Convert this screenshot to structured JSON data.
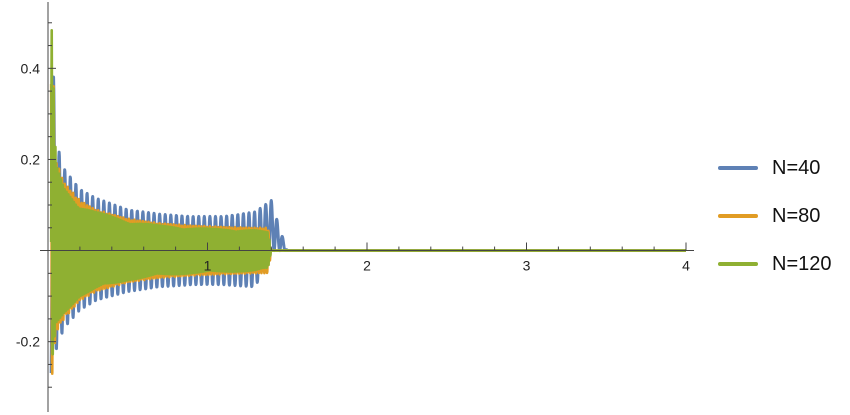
{
  "chart_data": {
    "type": "line",
    "title": "",
    "xlabel": "",
    "ylabel": "",
    "xlim": [
      0,
      4
    ],
    "ylim": [
      -0.35,
      0.55
    ],
    "x_ticks": [
      1,
      2,
      3,
      4
    ],
    "x_tick_labels": [
      "1",
      "2",
      "3",
      "4"
    ],
    "y_ticks": [
      -0.2,
      0.2,
      0.4
    ],
    "y_tick_labels": [
      "-0.2",
      "0.2",
      "0.4"
    ],
    "grid": false,
    "legend_position": "right",
    "series": [
      {
        "name": "N=40",
        "color": "#5e81b5",
        "oscillations": 40,
        "x": [
          0.02,
          0.05,
          0.1,
          0.2,
          0.3,
          0.5,
          0.7,
          0.9,
          1.1,
          1.3,
          1.4,
          1.45,
          1.5,
          2,
          3,
          4
        ],
        "upper": [
          0.52,
          0.24,
          0.18,
          0.135,
          0.115,
          0.09,
          0.08,
          0.075,
          0.075,
          0.085,
          0.11,
          0.05,
          0.0,
          0.0,
          0.0,
          0.0
        ],
        "lower": [
          -0.31,
          -0.22,
          -0.17,
          -0.13,
          -0.11,
          -0.09,
          -0.08,
          -0.075,
          -0.075,
          -0.08,
          -0.0,
          0.0,
          0.0,
          0.0,
          0.0,
          0.0
        ]
      },
      {
        "name": "N=80",
        "color": "#e19c24",
        "oscillations": 80,
        "x": [
          0.02,
          0.05,
          0.1,
          0.2,
          0.3,
          0.5,
          0.7,
          0.9,
          1.1,
          1.3,
          1.38,
          1.4,
          1.5,
          2,
          3,
          4
        ],
        "upper": [
          0.52,
          0.2,
          0.15,
          0.11,
          0.09,
          0.07,
          0.06,
          0.055,
          0.052,
          0.05,
          0.05,
          0.0,
          0.0,
          0.0,
          0.0,
          0.0
        ],
        "lower": [
          -0.3,
          -0.18,
          -0.15,
          -0.11,
          -0.09,
          -0.07,
          -0.06,
          -0.055,
          -0.052,
          -0.05,
          -0.05,
          0.0,
          0.0,
          0.0,
          0.0,
          0.0
        ]
      },
      {
        "name": "N=120",
        "color": "#8fb032",
        "oscillations": 120,
        "x": [
          0.02,
          0.05,
          0.1,
          0.2,
          0.3,
          0.5,
          0.7,
          0.9,
          1.1,
          1.3,
          1.38,
          1.4,
          1.5,
          2,
          3,
          4
        ],
        "upper": [
          0.52,
          0.19,
          0.14,
          0.1,
          0.085,
          0.065,
          0.055,
          0.05,
          0.047,
          0.045,
          0.04,
          0.0,
          0.0,
          0.0,
          0.0,
          0.0
        ],
        "lower": [
          -0.3,
          -0.17,
          -0.14,
          -0.1,
          -0.085,
          -0.065,
          -0.055,
          -0.05,
          -0.047,
          -0.045,
          -0.04,
          0.0,
          0.0,
          0.0,
          0.0,
          0.0
        ]
      }
    ]
  }
}
